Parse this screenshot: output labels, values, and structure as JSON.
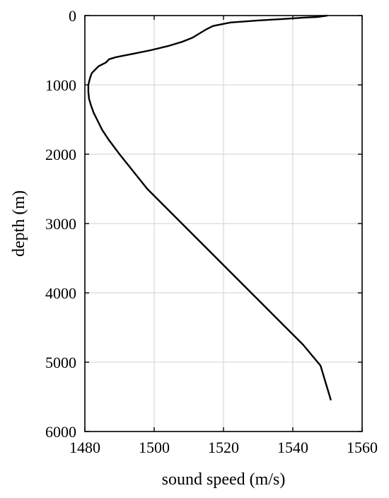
{
  "chart_data": {
    "type": "line",
    "title": "",
    "xlabel": "sound speed (m/s)",
    "ylabel": "depth (m)",
    "xlim": [
      1480,
      1560
    ],
    "ylim": [
      0,
      6000
    ],
    "y_reversed": true,
    "grid": true,
    "x_ticks": [
      1480,
      1500,
      1520,
      1540,
      1560
    ],
    "y_ticks": [
      0,
      1000,
      2000,
      3000,
      4000,
      5000,
      6000
    ],
    "line_color": "#000000",
    "grid_color": "#d9d9d9",
    "series": [
      {
        "x": [
          1550,
          1547,
          1543,
          1537,
          1530,
          1522,
          1517,
          1515,
          1514,
          1513,
          1511,
          1508,
          1504,
          1499,
          1494,
          1491,
          1489,
          1487,
          1486,
          1484,
          1483,
          1482,
          1481.5,
          1481,
          1481,
          1481.2,
          1481.8,
          1482.5,
          1483.5,
          1485,
          1487,
          1490,
          1494,
          1498,
          1503,
          1508,
          1513,
          1518,
          1523,
          1528,
          1533,
          1538,
          1543,
          1548,
          1551
        ],
        "y": [
          0,
          20,
          30,
          50,
          70,
          100,
          150,
          200,
          230,
          260,
          320,
          380,
          440,
          500,
          550,
          580,
          600,
          630,
          680,
          730,
          780,
          830,
          900,
          1000,
          1100,
          1200,
          1300,
          1400,
          1500,
          1650,
          1800,
          2000,
          2250,
          2500,
          2750,
          3000,
          3250,
          3500,
          3750,
          4000,
          4250,
          4500,
          4750,
          5050,
          5550
        ]
      }
    ]
  }
}
